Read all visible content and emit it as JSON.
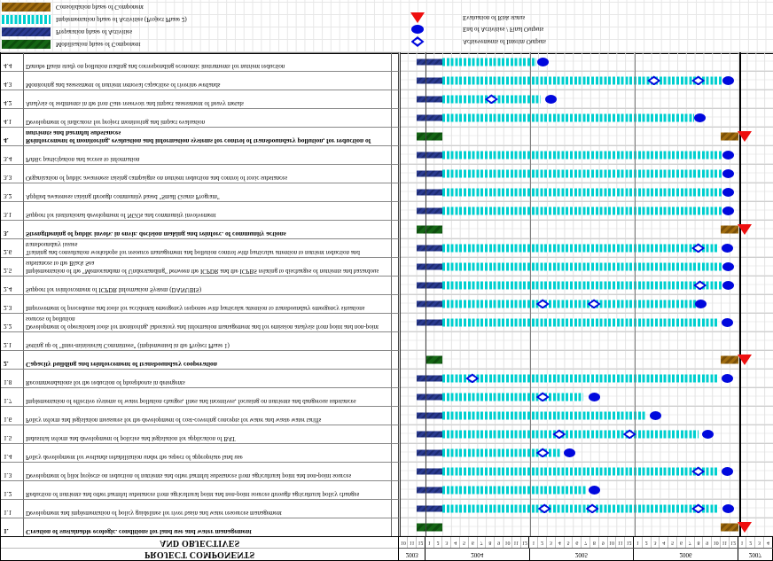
{
  "header": {
    "title_line1": "PROJECT COMPONENTS",
    "title_line2": "AND OBJECTIVES"
  },
  "legend": {
    "phases": [
      {
        "key": "mobilisation",
        "label": "Mobilisation phase of Component",
        "color": "#156615"
      },
      {
        "key": "preparation",
        "label": "Preparation phase of Activities",
        "color": "#2a3a90"
      },
      {
        "key": "implementation",
        "label": "Implementation phase of Activities (Project Phase 2)",
        "color": "#00cfcf"
      },
      {
        "key": "consolidation",
        "label": "Consolidation phase of Component",
        "color": "#a06c10"
      }
    ],
    "markers": [
      {
        "key": "diamond",
        "label": "Achievements of Interim Outputs"
      },
      {
        "key": "ellipse",
        "label": "End of Activities / Final Outputs"
      },
      {
        "key": "triangle",
        "label": "Evaluation of Risk status"
      }
    ]
  },
  "colors": {
    "preparation": "#2a3a90",
    "implementation": "#00cfcf",
    "mobilisation": "#156615",
    "consolidation": "#a06c10",
    "milestone_red": "#ee0f0f",
    "marker_blue": "#0008dd"
  },
  "chart_data": {
    "type": "gantt",
    "time_axis": {
      "start": "2003-10",
      "end": "2007-04",
      "months_total": 43,
      "years": [
        {
          "label": "2003",
          "months": [
            10,
            11,
            12
          ]
        },
        {
          "label": "2004",
          "months": [
            1,
            2,
            3,
            4,
            5,
            6,
            7,
            8,
            9,
            10,
            11,
            12
          ]
        },
        {
          "label": "2005",
          "months": [
            1,
            2,
            3,
            4,
            5,
            6,
            7,
            8,
            9,
            10,
            11,
            12
          ]
        },
        {
          "label": "2006",
          "months": [
            1,
            2,
            3,
            4,
            5,
            6,
            7,
            8,
            9,
            10,
            11,
            12
          ]
        },
        {
          "label": "2007",
          "months": [
            1,
            2,
            3,
            4
          ]
        }
      ]
    },
    "rows": [
      {
        "id": "1.",
        "bold": true,
        "label": "Creation of sustainable ecologic. conditions for land use and water management",
        "bars": [
          {
            "phase": "mobilisation",
            "start": 2,
            "end": 5
          },
          {
            "phase": "consolidation",
            "start": 37,
            "end": 39
          }
        ],
        "markers": [
          {
            "type": "triangle",
            "at": 39.7
          }
        ]
      },
      {
        "id": "1.1",
        "bold": false,
        "label": "Development and implementation of policy guidelines for river basin and water resources management",
        "bars": [
          {
            "phase": "preparation",
            "start": 2,
            "end": 5
          },
          {
            "phase": "implementation",
            "start": 5,
            "end": 36.7
          }
        ],
        "markers": [
          {
            "type": "diamond",
            "at": 16.7
          },
          {
            "type": "diamond",
            "at": 22.2
          },
          {
            "type": "diamond",
            "at": 34.4
          },
          {
            "type": "ellipse",
            "at": 37.8
          }
        ]
      },
      {
        "id": "1.2",
        "bold": false,
        "label": "Reduction of nutrients and other harmful substances from agricultural point and non-point sources through agricultural policy changes",
        "bars": [
          {
            "phase": "preparation",
            "start": 2,
            "end": 5
          },
          {
            "phase": "implementation",
            "start": 5,
            "end": 21.6
          }
        ],
        "markers": [
          {
            "type": "ellipse",
            "at": 22.4
          }
        ]
      },
      {
        "id": "1.3",
        "bold": false,
        "label": "Development of pilot projects on reduction of nutrients and other harmful substances from agricultural point and non-point sources",
        "bars": [
          {
            "phase": "preparation",
            "start": 2,
            "end": 5
          },
          {
            "phase": "implementation",
            "start": 5,
            "end": 36.7
          }
        ],
        "markers": [
          {
            "type": "diamond",
            "at": 34.4
          },
          {
            "type": "ellipse",
            "at": 37.7
          }
        ]
      },
      {
        "id": "1.4",
        "bold": false,
        "label": "Policy development for wetlands rehabilitation under the aspect of appropriate land use",
        "bars": [
          {
            "phase": "preparation",
            "start": 2,
            "end": 5
          },
          {
            "phase": "implementation",
            "start": 5,
            "end": 18.5
          }
        ],
        "markers": [
          {
            "type": "diamond",
            "at": 16.5
          },
          {
            "type": "ellipse",
            "at": 19.6
          }
        ]
      },
      {
        "id": "1.5",
        "bold": false,
        "label": "Industrial reform and development of policies and legislation for application of BAT",
        "bars": [
          {
            "phase": "preparation",
            "start": 2,
            "end": 5
          },
          {
            "phase": "implementation",
            "start": 5,
            "end": 34.4
          }
        ],
        "markers": [
          {
            "type": "diamond",
            "at": 18.4
          },
          {
            "type": "diamond",
            "at": 26.5
          },
          {
            "type": "ellipse",
            "at": 35.5
          }
        ]
      },
      {
        "id": "1.6",
        "bold": false,
        "label": "Policy reform and legislation measures for the development of cost-covering concepts for water and waste water tariffs",
        "bars": [
          {
            "phase": "preparation",
            "start": 2,
            "end": 5
          },
          {
            "phase": "implementation",
            "start": 5,
            "end": 28.3
          }
        ],
        "markers": [
          {
            "type": "ellipse",
            "at": 29.5
          }
        ]
      },
      {
        "id": "1.7",
        "bold": false,
        "label": "Implementation of effective systems of water pollution charges, fines and incentives, focusing on nutrients and dangerous substances",
        "bars": [
          {
            "phase": "preparation",
            "start": 2,
            "end": 5
          },
          {
            "phase": "implementation",
            "start": 5,
            "end": 21.2
          }
        ],
        "markers": [
          {
            "type": "diamond",
            "at": 16.5
          },
          {
            "type": "ellipse",
            "at": 22.4
          }
        ]
      },
      {
        "id": "1.8",
        "bold": false,
        "label": "Recommendations for the reduction of phosphorus in detergents",
        "bars": [
          {
            "phase": "preparation",
            "start": 2,
            "end": 5
          },
          {
            "phase": "implementation",
            "start": 5,
            "end": 36.7
          }
        ],
        "markers": [
          {
            "type": "diamond",
            "at": 8.4
          },
          {
            "type": "ellipse",
            "at": 37.7
          }
        ]
      },
      {
        "id": "2.",
        "bold": true,
        "label": "Capacity building and reinforcement of transboundary cooperation",
        "bars": [
          {
            "phase": "mobilisation",
            "start": 3,
            "end": 5
          },
          {
            "phase": "consolidation",
            "start": 37,
            "end": 39
          }
        ],
        "markers": [
          {
            "type": "triangle",
            "at": 39.7
          }
        ]
      },
      {
        "id": "2.1",
        "bold": false,
        "label": "Setting up of \"Inter-ministerial Committees\" (implemented in the Project Phase 1)",
        "bars": [],
        "markers": []
      },
      {
        "id": "2.2",
        "bold": false,
        "label": "Development of operational tools for monitoring, laboratory and information management and for emission analysis from point and non-point sources of pollution",
        "bars": [
          {
            "phase": "preparation",
            "start": 2,
            "end": 5
          },
          {
            "phase": "implementation",
            "start": 5,
            "end": 36.7
          }
        ],
        "markers": [
          {
            "type": "ellipse",
            "at": 37.7
          }
        ]
      },
      {
        "id": "2.3",
        "bold": false,
        "label": "Improvement of procedures and tools for accidental emergency response with particular attention to transboundary emergency situations",
        "bars": [
          {
            "phase": "preparation",
            "start": 2,
            "end": 5
          },
          {
            "phase": "implementation",
            "start": 5,
            "end": 34.2
          }
        ],
        "markers": [
          {
            "type": "diamond",
            "at": 16.5
          },
          {
            "type": "diamond",
            "at": 22.4
          },
          {
            "type": "ellipse",
            "at": 34.7
          }
        ]
      },
      {
        "id": "2.4",
        "bold": false,
        "label": "Support for reinforcement of ICPDR Information System (DANUBIS)",
        "bars": [
          {
            "phase": "preparation",
            "start": 2,
            "end": 5
          },
          {
            "phase": "implementation",
            "start": 5,
            "end": 37.2
          }
        ],
        "markers": [
          {
            "type": "diamond",
            "at": 34.6
          },
          {
            "type": "ellipse",
            "at": 37.8
          }
        ]
      },
      {
        "id": "2.5",
        "bold": false,
        "label": "Implementation of the \"Memorandum of Understanding\" between the ICPDR and the ICPBS relating to discharges of nutrients and hazardous substances to the Black Sea",
        "bars": [
          {
            "phase": "preparation",
            "start": 2,
            "end": 5
          },
          {
            "phase": "implementation",
            "start": 5,
            "end": 37.2
          }
        ],
        "markers": [
          {
            "type": "ellipse",
            "at": 37.8
          }
        ]
      },
      {
        "id": "2.6",
        "bold": false,
        "label": "Training and consultation workshops for resource management and pollution control with particular attention to nutrient reduction and transboundary issues",
        "bars": [
          {
            "phase": "preparation",
            "start": 2,
            "end": 5
          },
          {
            "phase": "implementation",
            "start": 5,
            "end": 36.7
          }
        ],
        "markers": [
          {
            "type": "diamond",
            "at": 34.4
          },
          {
            "type": "ellipse",
            "at": 37.7
          }
        ]
      },
      {
        "id": "3.",
        "bold": true,
        "label": "Strengthening of public involv. in envir. decision making and reinforc. of community actions",
        "bars": [
          {
            "phase": "mobilisation",
            "start": 2,
            "end": 5
          },
          {
            "phase": "consolidation",
            "start": 37,
            "end": 39
          }
        ],
        "markers": [
          {
            "type": "triangle",
            "at": 39.7
          }
        ]
      },
      {
        "id": "3.1",
        "bold": false,
        "label": "Support for institutional development of NGOs and community involvement",
        "bars": [
          {
            "phase": "preparation",
            "start": 2,
            "end": 5
          },
          {
            "phase": "implementation",
            "start": 5,
            "end": 37.2
          }
        ],
        "markers": [
          {
            "type": "ellipse",
            "at": 37.8
          }
        ]
      },
      {
        "id": "3.2",
        "bold": false,
        "label": "Applied awareness raising through community based \"Small Grants Program\"",
        "bars": [
          {
            "phase": "preparation",
            "start": 2,
            "end": 5
          },
          {
            "phase": "implementation",
            "start": 5,
            "end": 37.2
          }
        ],
        "markers": [
          {
            "type": "ellipse",
            "at": 37.8
          }
        ]
      },
      {
        "id": "3.3",
        "bold": false,
        "label": "Organization of public awareness raising campaigns on nutrient reduction and control of toxic substances",
        "bars": [
          {
            "phase": "preparation",
            "start": 2,
            "end": 5
          },
          {
            "phase": "implementation",
            "start": 5,
            "end": 37.2
          }
        ],
        "markers": [
          {
            "type": "ellipse",
            "at": 37.8
          }
        ]
      },
      {
        "id": "3.4",
        "bold": false,
        "label": "Public participation and access to information",
        "bars": [
          {
            "phase": "preparation",
            "start": 2,
            "end": 5
          },
          {
            "phase": "implementation",
            "start": 5,
            "end": 37.2
          }
        ],
        "markers": [
          {
            "type": "ellipse",
            "at": 37.8
          }
        ]
      },
      {
        "id": "4.",
        "bold": true,
        "label": "Reinforcement of monitoring, evaluation and information systems for control of transboundary pollution, for reduction of nutrients and harmful substances",
        "bars": [
          {
            "phase": "mobilisation",
            "start": 2,
            "end": 5
          },
          {
            "phase": "consolidation",
            "start": 37,
            "end": 39
          }
        ],
        "markers": [
          {
            "type": "triangle",
            "at": 39.7
          }
        ]
      },
      {
        "id": "4.1",
        "bold": false,
        "label": "Development of indicators for project monitoring and impact evaluation",
        "bars": [
          {
            "phase": "preparation",
            "start": 2,
            "end": 5
          },
          {
            "phase": "implementation",
            "start": 5,
            "end": 33.9
          }
        ],
        "markers": [
          {
            "type": "ellipse",
            "at": 34.6
          }
        ]
      },
      {
        "id": "4.2",
        "bold": false,
        "label": "Analysis of sediments in the Iron Gate reservoir and impact assessment of heavy metals",
        "bars": [
          {
            "phase": "preparation",
            "start": 2,
            "end": 5
          },
          {
            "phase": "implementation",
            "start": 5,
            "end": 16.3
          }
        ],
        "markers": [
          {
            "type": "diamond",
            "at": 10.6
          },
          {
            "type": "ellipse",
            "at": 17.4
          }
        ]
      },
      {
        "id": "4.3",
        "bold": false,
        "label": "Monitoring and assessment of nutrient removal capacities of riverine wetlands",
        "bars": [
          {
            "phase": "preparation",
            "start": 2,
            "end": 5
          },
          {
            "phase": "implementation",
            "start": 5,
            "end": 37.2
          }
        ],
        "markers": [
          {
            "type": "diamond",
            "at": 29.3
          },
          {
            "type": "diamond",
            "at": 34.4
          },
          {
            "type": "ellipse",
            "at": 37.8
          }
        ]
      },
      {
        "id": "4.4",
        "bold": false,
        "label": "Danube Basin study on pollution trading and corresponding economic instruments for nutrient reduction",
        "bars": [
          {
            "phase": "preparation",
            "start": 2,
            "end": 5
          },
          {
            "phase": "implementation",
            "start": 5,
            "end": 15.8
          }
        ],
        "markers": [
          {
            "type": "ellipse",
            "at": 16.5
          }
        ]
      }
    ],
    "year_separator_indices": [
      3,
      15,
      27,
      39
    ]
  }
}
